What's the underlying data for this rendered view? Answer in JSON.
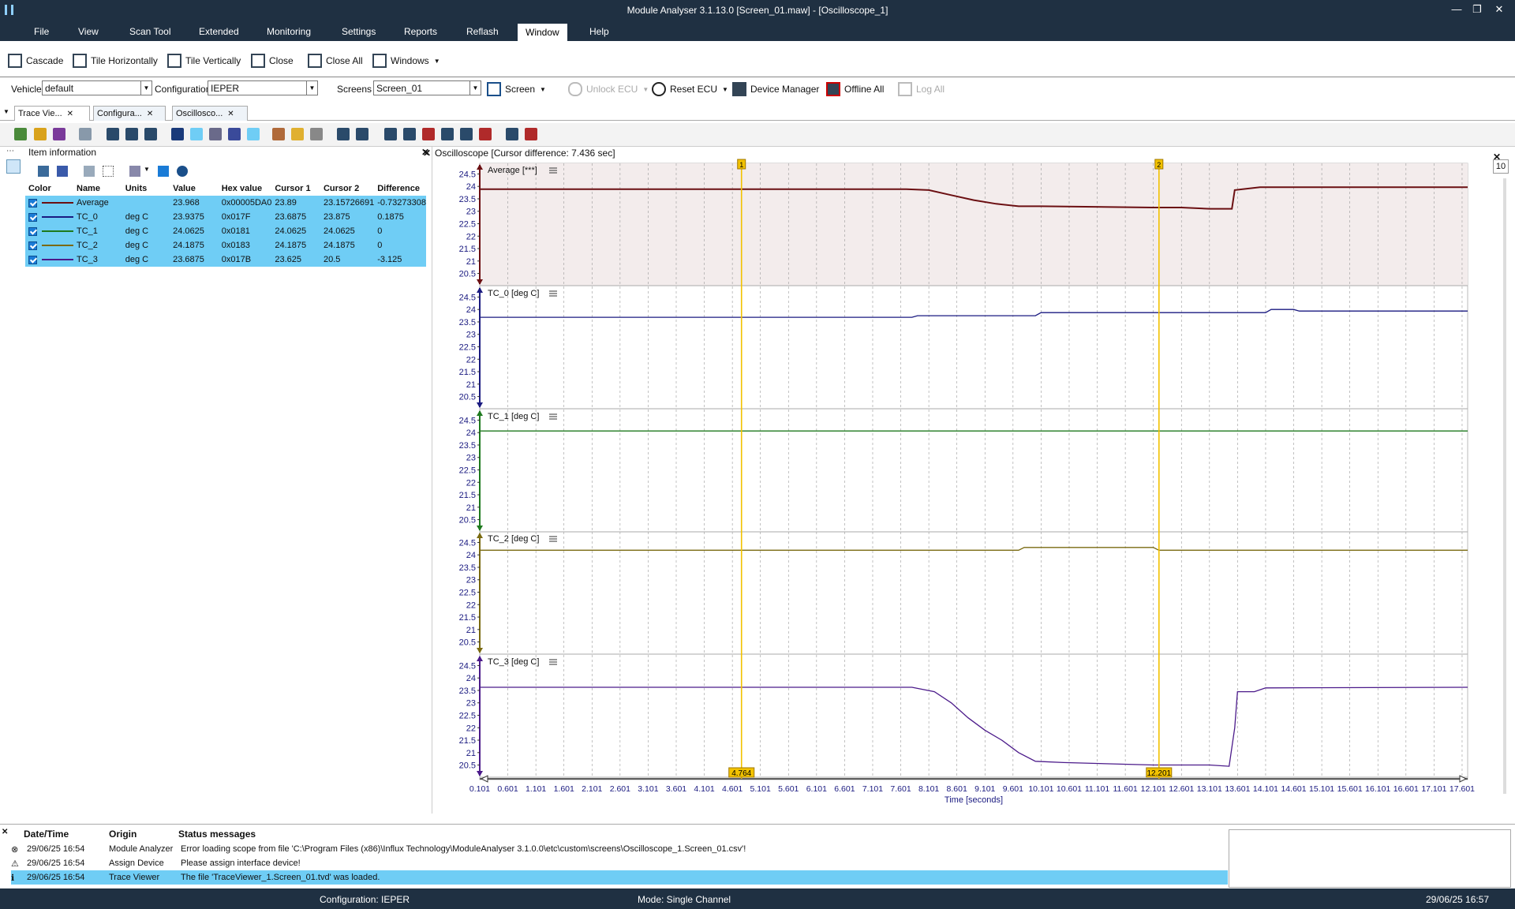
{
  "window": {
    "title": "Module Analyser 3.1.13.0 [Screen_01.maw] - [Oscilloscope_1]"
  },
  "menu": [
    "File",
    "View",
    "Scan Tool",
    "Extended",
    "Monitoring",
    "Settings",
    "Reports",
    "Reflash",
    "Window",
    "Help"
  ],
  "toolbar_window": {
    "cascade": "Cascade",
    "tile_h": "Tile Horizontally",
    "tile_v": "Tile Vertically",
    "close": "Close",
    "close_all": "Close All",
    "windows": "Windows"
  },
  "toolbar_main": {
    "vehicle_label": "Vehicle",
    "vehicle_value": "default",
    "config_label": "Configuration",
    "config_value": "IEPER",
    "screens_label": "Screens",
    "screens_value": "Screen_01",
    "screen_btn": "Screen",
    "unlock": "Unlock ECU",
    "reset": "Reset ECU",
    "device_manager": "Device Manager",
    "offline_all": "Offline All",
    "log_all": "Log All"
  },
  "doc_tabs": [
    "Trace Vie...",
    "Configura...",
    "Oscillosco..."
  ],
  "item_info": {
    "title": "Item information",
    "headers": [
      "Color",
      "Name",
      "Units",
      "Value",
      "Hex value",
      "Cursor 1",
      "Cursor 2",
      "Difference"
    ],
    "rows": [
      {
        "color": "#6b0f12",
        "name": "Average",
        "units": "",
        "value": "23.968",
        "hex": "0x00005DA0",
        "c1": "23.89",
        "c2": "23.15726691",
        "diff": "-0.73273308"
      },
      {
        "color": "#1a1a80",
        "name": "TC_0",
        "units": "deg C",
        "value": "23.9375",
        "hex": "0x017F",
        "c1": "23.6875",
        "c2": "23.875",
        "diff": "0.1875"
      },
      {
        "color": "#1e7a1e",
        "name": "TC_1",
        "units": "deg C",
        "value": "24.0625",
        "hex": "0x0181",
        "c1": "24.0625",
        "c2": "24.0625",
        "diff": "0"
      },
      {
        "color": "#7a6a10",
        "name": "TC_2",
        "units": "deg C",
        "value": "24.1875",
        "hex": "0x0183",
        "c1": "24.1875",
        "c2": "24.1875",
        "diff": "0"
      },
      {
        "color": "#4b1a8a",
        "name": "TC_3",
        "units": "deg C",
        "value": "23.6875",
        "hex": "0x017B",
        "c1": "23.625",
        "c2": "20.5",
        "diff": "-3.125"
      }
    ]
  },
  "scope": {
    "title": "Oscilloscope [Cursor difference: 7.436 sec]",
    "xlabel": "Time [seconds]",
    "cursor1_label": "4.764",
    "cursor2_label": "12.201",
    "cursor1_num": "1",
    "cursor2_num": "2",
    "zoom_value": "10"
  },
  "chart_data": {
    "type": "line",
    "title": "Oscilloscope [Cursor difference: 7.436 sec]",
    "xlabel": "Time [seconds]",
    "xticks": [
      "0.101",
      "0.601",
      "1.101",
      "1.601",
      "2.101",
      "2.601",
      "3.101",
      "3.601",
      "4.101",
      "4.601",
      "5.101",
      "5.601",
      "6.101",
      "6.601",
      "7.101",
      "7.601",
      "8.101",
      "8.601",
      "9.101",
      "9.601",
      "10.101",
      "10.601",
      "11.101",
      "11.601",
      "12.101",
      "12.601",
      "13.101",
      "13.601",
      "14.101",
      "14.601",
      "15.101",
      "15.601",
      "16.101",
      "16.601",
      "17.101",
      "17.601"
    ],
    "xlim": [
      0.101,
      17.7
    ],
    "yticks": [
      "24.5",
      "24",
      "23.5",
      "23",
      "22.5",
      "22",
      "21.5",
      "21",
      "20.5"
    ],
    "ylim": [
      20.2,
      24.8
    ],
    "cursors": [
      4.764,
      12.201
    ],
    "series": [
      {
        "name": "Average",
        "unit": "[***]",
        "color": "#6b0f12",
        "shaded": true,
        "x": [
          0.101,
          7.7,
          8.1,
          8.5,
          8.9,
          9.3,
          9.7,
          10.1,
          12.1,
          12.6,
          13.1,
          13.5,
          13.55,
          14.0,
          17.7
        ],
        "y": [
          23.89,
          23.89,
          23.85,
          23.65,
          23.45,
          23.3,
          23.2,
          23.2,
          23.15,
          23.15,
          23.1,
          23.1,
          23.85,
          23.97,
          23.97
        ]
      },
      {
        "name": "TC_0",
        "unit": "[deg C]",
        "color": "#1a1a80",
        "shaded": false,
        "x": [
          0.101,
          7.8,
          7.9,
          10.0,
          10.1,
          14.1,
          14.2,
          14.6,
          14.7,
          17.7
        ],
        "y": [
          23.6875,
          23.6875,
          23.75,
          23.75,
          23.875,
          23.875,
          24.0,
          24.0,
          23.9375,
          23.9375
        ]
      },
      {
        "name": "TC_1",
        "unit": "[deg C]",
        "color": "#1e7a1e",
        "shaded": false,
        "x": [
          0.101,
          17.7
        ],
        "y": [
          24.0625,
          24.0625
        ]
      },
      {
        "name": "TC_2",
        "unit": "[deg C]",
        "color": "#7a6a10",
        "shaded": false,
        "x": [
          0.101,
          9.7,
          9.8,
          12.1,
          12.2,
          17.7
        ],
        "y": [
          24.1875,
          24.1875,
          24.3,
          24.3,
          24.1875,
          24.1875
        ]
      },
      {
        "name": "TC_3",
        "unit": "[deg C]",
        "color": "#4b1a8a",
        "shaded": false,
        "x": [
          0.101,
          7.8,
          8.2,
          8.5,
          8.8,
          9.1,
          9.4,
          9.7,
          10.0,
          10.5,
          12.1,
          13.1,
          13.45,
          13.55,
          13.6,
          13.9,
          14.1,
          17.7
        ],
        "y": [
          23.625,
          23.625,
          23.45,
          23.0,
          22.4,
          21.9,
          21.5,
          21.0,
          20.65,
          20.6,
          20.5,
          20.5,
          20.45,
          22.0,
          23.45,
          23.45,
          23.6,
          23.625
        ]
      }
    ]
  },
  "status": {
    "headers": [
      "Date/Time",
      "Origin",
      "Status messages"
    ],
    "rows": [
      {
        "type": "error",
        "time": "29/06/25 16:54",
        "origin": "Module Analyzer",
        "msg": "Error loading scope from file 'C:\\Program Files (x86)\\Influx Technology\\ModuleAnalyser 3.1.0.0\\etc\\custom\\screens\\Oscilloscope_1.Screen_01.csv'!"
      },
      {
        "type": "warning",
        "time": "29/06/25 16:54",
        "origin": "Assign Device",
        "msg": "Please assign interface device!"
      },
      {
        "type": "info",
        "time": "29/06/25 16:54",
        "origin": "Trace Viewer",
        "msg": "The file 'TraceViewer_1.Screen_01.tvd' was loaded."
      }
    ]
  },
  "statusbar": {
    "config": "Configuration: IEPER",
    "mode": "Mode: Single Channel",
    "datetime": "29/06/25 16:57"
  }
}
